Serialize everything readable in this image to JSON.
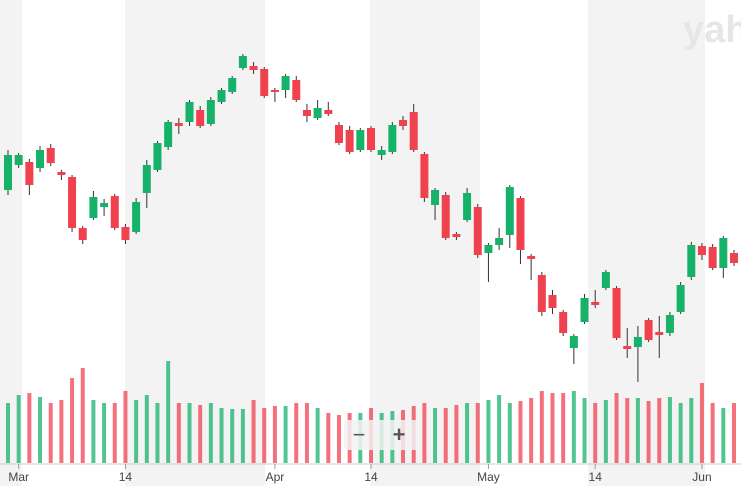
{
  "chart_data": {
    "type": "candlestick",
    "categories": [
      null,
      "Mar",
      null,
      null,
      null,
      null,
      null,
      null,
      null,
      null,
      null,
      "14",
      null,
      null,
      null,
      null,
      null,
      null,
      null,
      null,
      null,
      null,
      null,
      null,
      null,
      "Apr",
      null,
      null,
      null,
      null,
      null,
      null,
      null,
      null,
      "14",
      null,
      null,
      null,
      null,
      null,
      null,
      null,
      null,
      null,
      null,
      "May",
      null,
      null,
      null,
      null,
      null,
      null,
      null,
      null,
      null,
      "14",
      null,
      null,
      null,
      null,
      null,
      null,
      null,
      null,
      null,
      "Jun",
      null,
      null,
      null
    ],
    "open": [
      296,
      321,
      324,
      318,
      338,
      314,
      309,
      258,
      268,
      279,
      290,
      259,
      254,
      293,
      316,
      339,
      363,
      364,
      376,
      362,
      384,
      394,
      418,
      420,
      417,
      396,
      396,
      406,
      376,
      368,
      376,
      361,
      356,
      336,
      358,
      331,
      334,
      366,
      374,
      332,
      281,
      291,
      252,
      266,
      279,
      233,
      241,
      251,
      288,
      230,
      211,
      191,
      174,
      138,
      164,
      184,
      198,
      198,
      140,
      139,
      166,
      154,
      153,
      174,
      209,
      240,
      239,
      218,
      233
    ],
    "high": [
      336,
      333,
      327,
      340,
      342,
      316,
      311,
      260,
      295,
      287,
      292,
      262,
      288,
      326,
      345,
      366,
      368,
      386,
      380,
      389,
      398,
      410,
      432,
      424,
      419,
      398,
      412,
      410,
      382,
      386,
      384,
      364,
      360,
      358,
      360,
      340,
      364,
      370,
      382,
      334,
      298,
      294,
      254,
      298,
      282,
      243,
      258,
      301,
      290,
      232,
      214,
      196,
      176,
      152,
      192,
      196,
      216,
      200,
      158,
      160,
      168,
      170,
      174,
      204,
      244,
      243,
      242,
      250,
      236
    ],
    "low": [
      291,
      318,
      291,
      314,
      320,
      306,
      254,
      242,
      266,
      270,
      256,
      242,
      252,
      278,
      314,
      336,
      352,
      360,
      358,
      360,
      382,
      392,
      416,
      412,
      388,
      384,
      388,
      384,
      364,
      366,
      370,
      341,
      332,
      334,
      334,
      326,
      332,
      356,
      334,
      284,
      266,
      246,
      246,
      264,
      228,
      204,
      236,
      238,
      222,
      206,
      170,
      172,
      150,
      122,
      162,
      178,
      196,
      146,
      128,
      104,
      144,
      128,
      150,
      172,
      206,
      226,
      216,
      208,
      220
    ],
    "close": [
      331,
      331,
      301,
      336,
      323,
      311,
      258,
      246,
      289,
      283,
      258,
      246,
      284,
      321,
      343,
      364,
      360,
      384,
      360,
      386,
      396,
      408,
      430,
      416,
      390,
      394,
      410,
      386,
      370,
      378,
      372,
      343,
      334,
      356,
      336,
      336,
      361,
      360,
      336,
      288,
      296,
      248,
      249,
      293,
      231,
      241,
      248,
      299,
      236,
      227,
      174,
      178,
      153,
      150,
      188,
      181,
      214,
      148,
      137,
      149,
      146,
      151,
      171,
      201,
      241,
      231,
      218,
      248,
      223
    ],
    "volume": [
      60,
      68,
      70,
      66,
      60,
      63,
      85,
      95,
      63,
      60,
      60,
      72,
      63,
      68,
      60,
      102,
      60,
      60,
      58,
      60,
      55,
      54,
      54,
      63,
      55,
      57,
      57,
      60,
      60,
      55,
      50,
      48,
      50,
      50,
      55,
      50,
      52,
      53,
      57,
      60,
      55,
      55,
      58,
      60,
      60,
      63,
      68,
      60,
      62,
      65,
      72,
      70,
      70,
      72,
      65,
      60,
      63,
      70,
      65,
      65,
      62,
      65,
      66,
      60,
      65,
      80,
      60,
      55,
      60
    ],
    "ylim": [
      0,
      486
    ],
    "y2lim": [
      0,
      463
    ],
    "up_color": "#17b26a",
    "down_color": "#f0414f",
    "watermark": "yah",
    "zoom_out": "−",
    "zoom_in": "+"
  }
}
